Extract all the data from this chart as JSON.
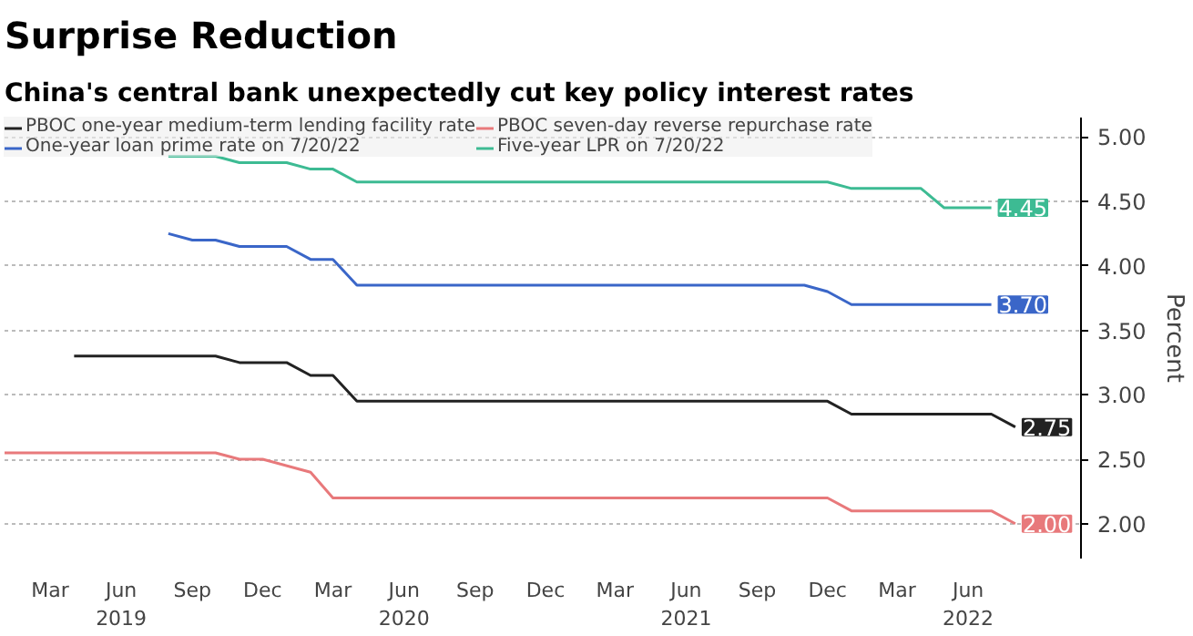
{
  "chart_data": {
    "type": "line",
    "title": "Surprise Reduction",
    "subtitle": "China's central bank unexpectedly cut key policy interest rates",
    "ylabel": "Percent",
    "xlim": [
      "2019-01-01",
      "2022-10-25"
    ],
    "ylim": [
      1.73,
      5.15
    ],
    "yticks": [
      {
        "value": 2.0,
        "label": "2.00"
      },
      {
        "value": 2.5,
        "label": "2.50"
      },
      {
        "value": 3.0,
        "label": "3.00"
      },
      {
        "value": 3.5,
        "label": "3.50"
      },
      {
        "value": 4.0,
        "label": "4.00"
      },
      {
        "value": 4.5,
        "label": "4.50"
      },
      {
        "value": 5.0,
        "label": "5.00"
      }
    ],
    "xticks": [
      {
        "value": "2019-03",
        "label": "Mar"
      },
      {
        "value": "2019-06",
        "label": "Jun\n2019"
      },
      {
        "value": "2019-09",
        "label": "Sep"
      },
      {
        "value": "2019-12",
        "label": "Dec"
      },
      {
        "value": "2020-03",
        "label": "Mar"
      },
      {
        "value": "2020-06",
        "label": "Jun\n2020"
      },
      {
        "value": "2020-09",
        "label": "Sep"
      },
      {
        "value": "2020-12",
        "label": "Dec"
      },
      {
        "value": "2021-03",
        "label": "Mar"
      },
      {
        "value": "2021-06",
        "label": "Jun\n2021"
      },
      {
        "value": "2021-09",
        "label": "Sep"
      },
      {
        "value": "2021-12",
        "label": "Dec"
      },
      {
        "value": "2022-03",
        "label": "Mar"
      },
      {
        "value": "2022-06",
        "label": "Jun\n2022"
      }
    ],
    "grid": "y",
    "legend": "top left",
    "marker": "none",
    "line_style": "solid",
    "series": [
      {
        "name": "PBOC one-year medium-term lending facility rate",
        "color": "#222222",
        "x": [
          "2019-04",
          "2019-10",
          "2019-11",
          "2020-01",
          "2020-02",
          "2020-03",
          "2020-04",
          "2021-12",
          "2022-01",
          "2022-07",
          "2022-08"
        ],
        "values": [
          3.3,
          3.3,
          3.25,
          3.25,
          3.15,
          3.15,
          2.95,
          2.95,
          2.85,
          2.85,
          2.75
        ],
        "value_labels": [
          null,
          null,
          null,
          null,
          null,
          null,
          null,
          null,
          null,
          null,
          "2.75"
        ]
      },
      {
        "name": "PBOC seven-day reverse repurchase rate",
        "color": "#e8797b",
        "x": [
          "2019-01",
          "2019-10",
          "2019-11",
          "2019-12",
          "2020-02",
          "2020-03",
          "2021-12",
          "2022-01",
          "2022-07",
          "2022-08"
        ],
        "values": [
          2.55,
          2.55,
          2.5,
          2.5,
          2.4,
          2.2,
          2.2,
          2.1,
          2.1,
          2.0
        ],
        "value_labels": [
          null,
          null,
          null,
          null,
          null,
          null,
          null,
          null,
          null,
          "2.00"
        ]
      },
      {
        "name": "One-year loan prime rate on 7/20/22",
        "color": "#3a66c8",
        "x": [
          "2019-08",
          "2019-09",
          "2019-10",
          "2019-11",
          "2020-01",
          "2020-02",
          "2020-03",
          "2020-04",
          "2021-11",
          "2021-12",
          "2022-01",
          "2022-07"
        ],
        "values": [
          4.25,
          4.2,
          4.2,
          4.15,
          4.15,
          4.05,
          4.05,
          3.85,
          3.85,
          3.8,
          3.7,
          3.7
        ],
        "value_labels": [
          null,
          null,
          null,
          null,
          null,
          null,
          null,
          null,
          null,
          null,
          null,
          "3.70"
        ]
      },
      {
        "name": "Five-year LPR on 7/20/22",
        "color": "#3dbb93",
        "x": [
          "2019-08",
          "2019-10",
          "2019-11",
          "2020-01",
          "2020-02",
          "2020-03",
          "2020-04",
          "2021-12",
          "2022-01",
          "2022-04",
          "2022-05",
          "2022-07"
        ],
        "values": [
          4.85,
          4.85,
          4.8,
          4.8,
          4.75,
          4.75,
          4.65,
          4.65,
          4.6,
          4.6,
          4.45,
          4.45
        ],
        "value_labels": [
          null,
          null,
          null,
          null,
          null,
          null,
          null,
          null,
          null,
          null,
          null,
          "4.45"
        ]
      }
    ]
  }
}
